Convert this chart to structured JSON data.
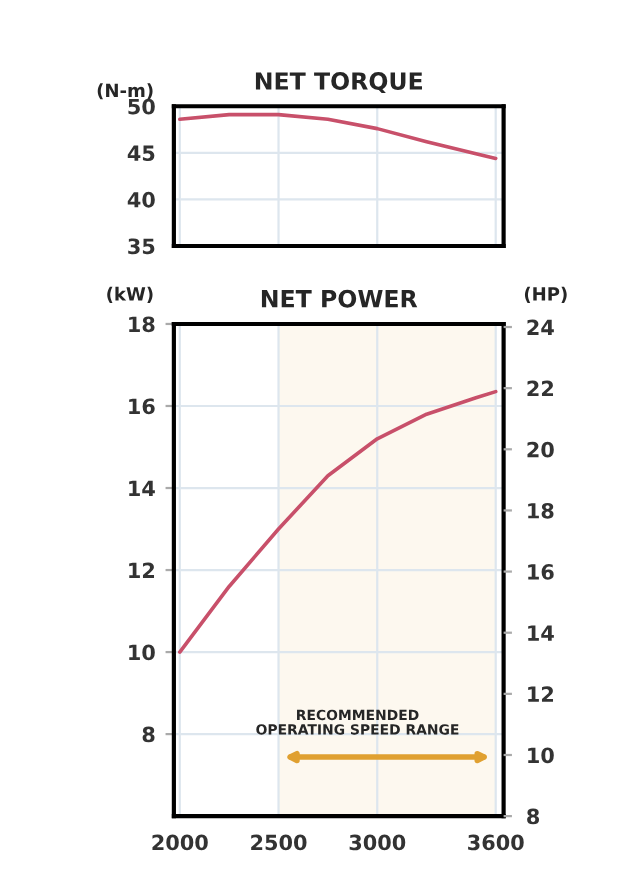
{
  "chart_data": [
    {
      "type": "line",
      "title": "NET TORQUE",
      "ylabel": "(N-m)",
      "x": [
        2000,
        2250,
        2500,
        2750,
        3000,
        3250,
        3500,
        3600
      ],
      "series": [
        {
          "color": "#c8506a",
          "values": [
            48.6,
            49.1,
            49.1,
            48.6,
            47.6,
            46.2,
            44.9,
            44.4
          ]
        }
      ],
      "xlim": [
        1970,
        3640
      ],
      "xticks": [
        2000,
        2500,
        3000,
        3600
      ],
      "ylim": [
        35,
        50
      ],
      "yticks": [
        35,
        40,
        45,
        50
      ],
      "grid": true,
      "tick_labels": "y",
      "marker": "none",
      "line_style": "solid"
    },
    {
      "type": "line",
      "title": "NET POWER",
      "ylabel": "(kW)",
      "y2label": "(HP)",
      "x": [
        2000,
        2250,
        2500,
        2750,
        3000,
        3250,
        3500,
        3600
      ],
      "series": [
        {
          "color": "#c8506a",
          "values": [
            10,
            11.6,
            13.0,
            14.3,
            15.2,
            15.8,
            16.2,
            16.35
          ]
        }
      ],
      "xlim": [
        1970,
        3640
      ],
      "xticks": [
        2000,
        2500,
        3000,
        3600
      ],
      "ylim": [
        6,
        18
      ],
      "yticks": [
        8,
        10,
        12,
        14,
        16,
        18
      ],
      "y2lim": [
        8,
        24.1
      ],
      "y2ticks": [
        8,
        10,
        12,
        14,
        16,
        18,
        20,
        22,
        24
      ],
      "bands": [
        {
          "axis": "x",
          "from": 2500,
          "to": 3600,
          "label": "RECOMMENDED\nOPERATING SPEED RANGE",
          "color": "#e0a030"
        }
      ],
      "grid": true,
      "marker": "none",
      "line_style": "solid"
    }
  ]
}
